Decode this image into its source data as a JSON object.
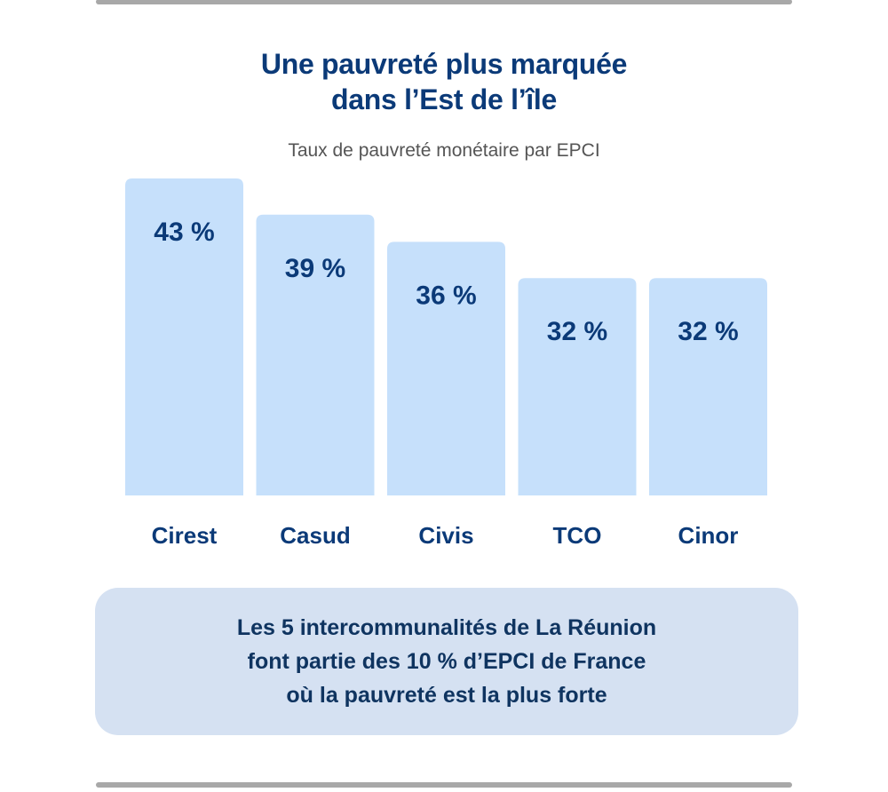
{
  "header": {
    "title_line1": "Une pauvreté plus marquée",
    "title_line2": "dans l’Est de l’île",
    "subtitle": "Taux de pauvreté monétaire par EPCI"
  },
  "chart_data": {
    "type": "bar",
    "title": "Une pauvreté plus marquée dans l’Est de l’île",
    "subtitle": "Taux de pauvreté monétaire par EPCI",
    "xlabel": "",
    "ylabel": "",
    "unit": "%",
    "categories": [
      "Cirest",
      "Casud",
      "Civis",
      "TCO",
      "Cinor"
    ],
    "values": [
      43,
      39,
      36,
      32,
      32
    ],
    "labels": [
      "43 %",
      "39 %",
      "36 %",
      "32 %",
      "32 %"
    ],
    "grid": false,
    "legend": "none"
  },
  "colors": {
    "bar": "#c6e0fb",
    "text_dark_blue": "#0b3a78",
    "note_background": "#d5e1f2",
    "divider": "#a8a8a8"
  },
  "note": {
    "line1": "Les 5 intercommunalités de La Réunion",
    "line2": "font partie des 10 % d’EPCI de France",
    "line3": "où la pauvreté est la plus forte"
  }
}
